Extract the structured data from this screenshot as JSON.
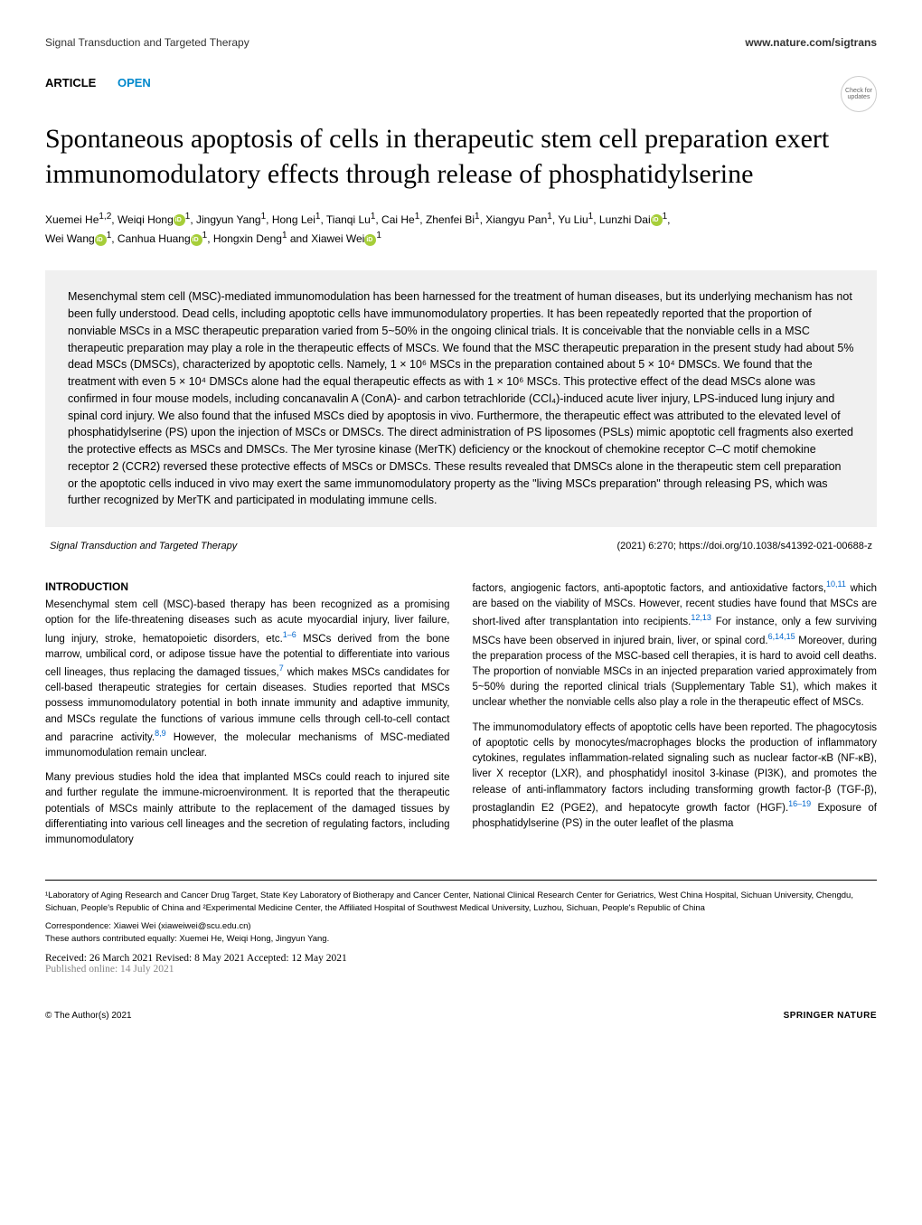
{
  "header": {
    "journal": "Signal Transduction and Targeted Therapy",
    "url": "www.nature.com/sigtrans"
  },
  "check_updates": "Check for updates",
  "article_type": {
    "type": "ARTICLE",
    "open": "OPEN"
  },
  "title": "Spontaneous apoptosis of cells in therapeutic stem cell preparation exert immunomodulatory effects through release of phosphatidylserine",
  "authors": {
    "line1_a": "Xuemei He",
    "line1_a_sup": "1,2",
    "line1_b": ", Weiqi Hong",
    "line1_c_sup": "1",
    "line1_d": ", Jingyun Yang",
    "line1_d_sup": "1",
    "line1_e": ", Hong Lei",
    "line1_e_sup": "1",
    "line1_f": ", Tianqi Lu",
    "line1_f_sup": "1",
    "line1_g": ", Cai He",
    "line1_g_sup": "1",
    "line1_h": ", Zhenfei Bi",
    "line1_h_sup": "1",
    "line1_i": ", Xiangyu Pan",
    "line1_i_sup": "1",
    "line1_j": ", Yu Liu",
    "line1_j_sup": "1",
    "line1_k": ", Lunzhi Dai",
    "line1_k_sup": "1",
    "line1_l": ",",
    "line2_a": "Wei Wang",
    "line2_a_sup": "1",
    "line2_b": ", Canhua Huang",
    "line2_b_sup": "1",
    "line2_c": ", Hongxin Deng",
    "line2_c_sup": "1",
    "line2_d": " and Xiawei Wei",
    "line2_d_sup": "1"
  },
  "abstract": "Mesenchymal stem cell (MSC)-mediated immunomodulation has been harnessed for the treatment of human diseases, but its underlying mechanism has not been fully understood. Dead cells, including apoptotic cells have immunomodulatory properties. It has been repeatedly reported that the proportion of nonviable MSCs in a MSC therapeutic preparation varied from 5~50% in the ongoing clinical trials. It is conceivable that the nonviable cells in a MSC therapeutic preparation may play a role in the therapeutic effects of MSCs. We found that the MSC therapeutic preparation in the present study had about 5% dead MSCs (DMSCs), characterized by apoptotic cells. Namely, 1 × 10⁶ MSCs in the preparation contained about 5 × 10⁴ DMSCs. We found that the treatment with even 5 × 10⁴ DMSCs alone had the equal therapeutic effects as with 1 × 10⁶ MSCs. This protective effect of the dead MSCs alone was confirmed in four mouse models, including concanavalin A (ConA)- and carbon tetrachloride (CCl₄)-induced acute liver injury, LPS-induced lung injury and spinal cord injury. We also found that the infused MSCs died by apoptosis in vivo. Furthermore, the therapeutic effect was attributed to the elevated level of phosphatidylserine (PS) upon the injection of MSCs or DMSCs. The direct administration of PS liposomes (PSLs) mimic apoptotic cell fragments also exerted the protective effects as MSCs and DMSCs. The Mer tyrosine kinase (MerTK) deficiency or the knockout of chemokine receptor C–C motif chemokine receptor 2 (CCR2) reversed these protective effects of MSCs or DMSCs. These results revealed that DMSCs alone in the therapeutic stem cell preparation or the apoptotic cells induced in vivo may exert the same immunomodulatory property as the \"living MSCs preparation\" through releasing PS, which was further recognized by MerTK and participated in modulating immune cells.",
  "citation": {
    "journal": "Signal Transduction and Targeted Therapy",
    "details": "(2021) 6:270; https://doi.org/10.1038/s41392-021-00688-z"
  },
  "intro_heading": "INTRODUCTION",
  "intro_p1_a": "Mesenchymal stem cell (MSC)-based therapy has been recognized as a promising option for the life-threatening diseases such as acute myocardial injury, liver failure, lung injury, stroke, hematopoietic disorders, etc.",
  "intro_p1_ref1": "1–6",
  "intro_p1_b": " MSCs derived from the bone marrow, umbilical cord, or adipose tissue have the potential to differentiate into various cell lineages, thus replacing the damaged tissues,",
  "intro_p1_ref2": "7",
  "intro_p1_c": " which makes MSCs candidates for cell-based therapeutic strategies for certain diseases. Studies reported that MSCs possess immunomodulatory potential in both innate immunity and adaptive immunity, and MSCs regulate the functions of various immune cells through cell-to-cell contact and paracrine activity.",
  "intro_p1_ref3": "8,9",
  "intro_p1_d": " However, the molecular mechanisms of MSC-mediated immunomodulation remain unclear.",
  "intro_p2": "Many previous studies hold the idea that implanted MSCs could reach to injured site and further regulate the immune-microenvironment. It is reported that the therapeutic potentials of MSCs mainly attribute to the replacement of the damaged tissues by differentiating into various cell lineages and the secretion of regulating factors, including immunomodulatory",
  "col2_p1_a": "factors, angiogenic factors, anti-apoptotic factors, and antioxidative factors,",
  "col2_p1_ref1": "10,11",
  "col2_p1_b": " which are based on the viability of MSCs. However, recent studies have found that MSCs are short-lived after transplantation into recipients.",
  "col2_p1_ref2": "12,13",
  "col2_p1_c": " For instance, only a few surviving MSCs have been observed in injured brain, liver, or spinal cord.",
  "col2_p1_ref3": "6,14,15",
  "col2_p1_d": " Moreover, during the preparation process of the MSC-based cell therapies, it is hard to avoid cell deaths. The proportion of nonviable MSCs in an injected preparation varied approximately from 5~50% during the reported clinical trials (Supplementary Table S1), which makes it unclear whether the nonviable cells also play a role in the therapeutic effect of MSCs.",
  "col2_p2_a": "The immunomodulatory effects of apoptotic cells have been reported. The phagocytosis of apoptotic cells by monocytes/macrophages blocks the production of inflammatory cytokines, regulates inflammation-related signaling such as nuclear factor-κB (NF-κB), liver X receptor (LXR), and phosphatidyl inositol 3-kinase (PI3K), and promotes the release of anti-inflammatory factors including transforming growth factor-β (TGF-β), prostaglandin E2 (PGE2), and hepatocyte growth factor (HGF).",
  "col2_p2_ref1": "16–19",
  "col2_p2_b": " Exposure of phosphatidylserine (PS) in the outer leaflet of the plasma",
  "affiliations": "¹Laboratory of Aging Research and Cancer Drug Target, State Key Laboratory of Biotherapy and Cancer Center, National Clinical Research Center for Geriatrics, West China Hospital, Sichuan University, Chengdu, Sichuan, People's Republic of China and ²Experimental Medicine Center, the Affiliated Hospital of Southwest Medical University, Luzhou, Sichuan, People's Republic of China",
  "correspondence": "Correspondence: Xiawei Wei (xiaweiwei@scu.edu.cn)",
  "equal_contrib": "These authors contributed equally: Xuemei He, Weiqi Hong, Jingyun Yang.",
  "dates": {
    "received": "Received: 26 March 2021 Revised: 8 May 2021 Accepted: 12 May 2021",
    "published": "Published online: 14 July 2021"
  },
  "footer": {
    "copyright": "© The Author(s) 2021",
    "publisher": "SPRINGER NATURE"
  }
}
